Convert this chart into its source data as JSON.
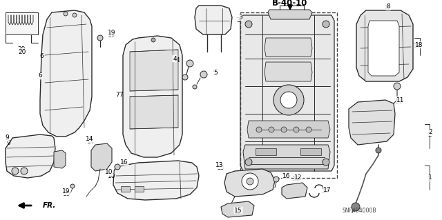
{
  "bg_color": "#ffffff",
  "line_color": "#2a2a2a",
  "header_text": "B-40-10",
  "footer_text": "SNF4B4000B",
  "fr_label": "FR.",
  "figsize": [
    6.4,
    3.19
  ],
  "dpi": 100
}
